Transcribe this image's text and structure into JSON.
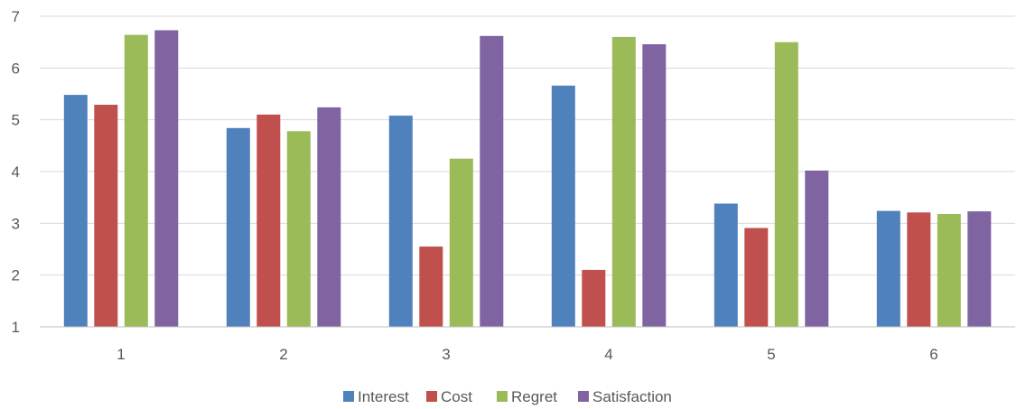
{
  "chart_data": {
    "type": "bar",
    "title": "",
    "xlabel": "",
    "ylabel": "",
    "categories": [
      "1",
      "2",
      "3",
      "4",
      "5",
      "6"
    ],
    "ylim": [
      1,
      7
    ],
    "yticks": [
      "1",
      "2",
      "3",
      "4",
      "5",
      "6",
      "7"
    ],
    "grid": true,
    "legend_position": "bottom",
    "series": [
      {
        "name": "Interest",
        "color": "#4f81bd",
        "values": [
          5.48,
          4.84,
          5.08,
          5.66,
          3.38,
          3.24
        ]
      },
      {
        "name": "Cost",
        "color": "#c0504d",
        "values": [
          5.29,
          5.1,
          2.55,
          2.1,
          2.91,
          3.21
        ]
      },
      {
        "name": "Regret",
        "color": "#9bbb59",
        "values": [
          6.64,
          4.78,
          4.25,
          6.6,
          6.5,
          3.18
        ]
      },
      {
        "name": "Satisfaction",
        "color": "#8064a2",
        "values": [
          6.73,
          5.24,
          6.62,
          6.46,
          4.02,
          3.23
        ]
      }
    ]
  }
}
